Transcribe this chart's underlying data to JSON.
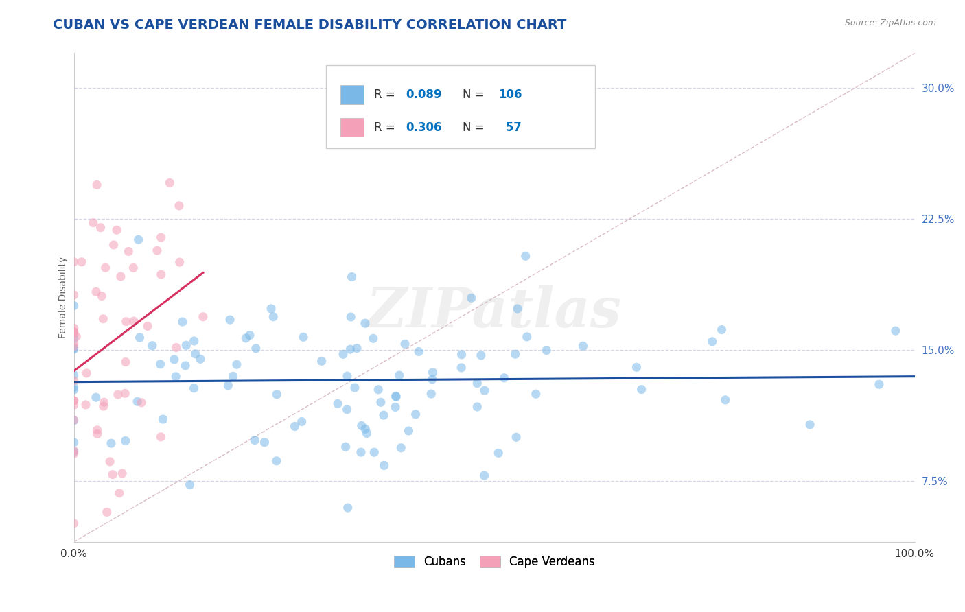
{
  "title": "CUBAN VS CAPE VERDEAN FEMALE DISABILITY CORRELATION CHART",
  "source_text": "Source: ZipAtlas.com",
  "ylabel": "Female Disability",
  "xlim": [
    0.0,
    1.0
  ],
  "ylim": [
    0.04,
    0.32
  ],
  "yticks": [
    0.075,
    0.15,
    0.225,
    0.3
  ],
  "ytick_labels": [
    "7.5%",
    "15.0%",
    "22.5%",
    "30.0%"
  ],
  "xticks": [
    0.0,
    1.0
  ],
  "xtick_labels": [
    "0.0%",
    "100.0%"
  ],
  "cubans_color": "#7ab8e8",
  "cape_verdeans_color": "#f4a0b8",
  "blue_line_color": "#1a4f9e",
  "pink_line_color": "#d63060",
  "ref_line_color": "#d0aab8",
  "background_color": "#ffffff",
  "grid_color": "#d5d5e8",
  "title_color": "#1a4f9e",
  "right_tick_color": "#4472c4",
  "title_fontsize": 14,
  "axis_label_fontsize": 10,
  "tick_fontsize": 11,
  "legend_text_color": "#333333",
  "legend_val_color": "#0070c0",
  "cubans_R": 0.089,
  "cubans_N": 106,
  "cape_verdeans_R": 0.306,
  "cape_verdeans_N": 57,
  "watermark": "ZIPatlas"
}
